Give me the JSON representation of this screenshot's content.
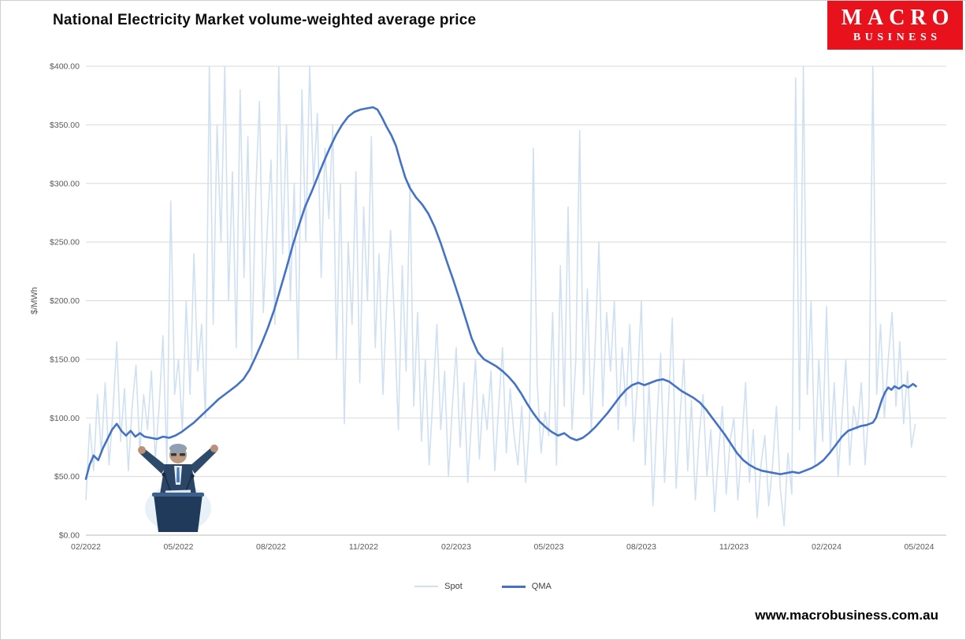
{
  "logo": {
    "line1": "MACRO",
    "line2": "BUSINESS",
    "bg": "#e8121d",
    "fg": "#ffffff"
  },
  "footer": {
    "website": "www.macrobusiness.com.au"
  },
  "overlay_image": {
    "name": "speaker-at-podium-arms-raised"
  },
  "chart_data": {
    "type": "line",
    "title": "National Electricity Market volume-weighted average price",
    "xlabel": "",
    "ylabel": "$/MWh",
    "ylim": [
      0,
      400
    ],
    "ytick_step": 50,
    "ytick_labels": [
      "$0.00",
      "$50.00",
      "$100.00",
      "$150.00",
      "$200.00",
      "$250.00",
      "$300.00",
      "$350.00",
      "$400.00"
    ],
    "x_axis": {
      "unit": "months since 02/2022",
      "tick_months": [
        0,
        3,
        6,
        9,
        12,
        15,
        18,
        21,
        24,
        27
      ],
      "tick_labels": [
        "02/2022",
        "05/2022",
        "08/2022",
        "11/2022",
        "02/2023",
        "05/2023",
        "08/2023",
        "11/2023",
        "02/2024",
        "05/2024"
      ]
    },
    "grid": "horizontal",
    "legend_position": "bottom-center",
    "series": [
      {
        "name": "Spot",
        "color": "#cfe0f2",
        "x_start": 0,
        "x_step": 0.125,
        "values": [
          30,
          95,
          55,
          120,
          70,
          130,
          60,
          105,
          165,
          80,
          125,
          55,
          110,
          145,
          70,
          120,
          90,
          140,
          65,
          110,
          170,
          60,
          285,
          120,
          150,
          90,
          200,
          120,
          240,
          140,
          180,
          100,
          400,
          180,
          350,
          250,
          400,
          200,
          310,
          160,
          380,
          220,
          340,
          150,
          290,
          370,
          190,
          260,
          320,
          180,
          400,
          240,
          350,
          200,
          300,
          150,
          380,
          250,
          400,
          300,
          360,
          220,
          330,
          270,
          350,
          150,
          300,
          95,
          250,
          180,
          310,
          130,
          280,
          200,
          340,
          160,
          240,
          120,
          200,
          260,
          180,
          90,
          230,
          140,
          300,
          110,
          190,
          80,
          150,
          60,
          120,
          180,
          90,
          140,
          50,
          110,
          160,
          75,
          130,
          45,
          100,
          150,
          65,
          120,
          90,
          140,
          55,
          110,
          160,
          70,
          125,
          85,
          60,
          110,
          45,
          95,
          330,
          130,
          70,
          105,
          85,
          190,
          60,
          230,
          110,
          280,
          90,
          150,
          345,
          120,
          210,
          90,
          160,
          250,
          110,
          190,
          140,
          200,
          90,
          160,
          110,
          180,
          80,
          130,
          200,
          60,
          130,
          25,
          95,
          155,
          45,
          110,
          185,
          40,
          100,
          150,
          55,
          115,
          30,
          85,
          120,
          50,
          90,
          20,
          70,
          110,
          35,
          80,
          100,
          30,
          75,
          130,
          45,
          90,
          15,
          60,
          85,
          25,
          60,
          110,
          40,
          8,
          70,
          35,
          390,
          90,
          400,
          120,
          200,
          60,
          150,
          80,
          195,
          70,
          130,
          50,
          100,
          150,
          60,
          110,
          90,
          130,
          60,
          110,
          400,
          120,
          180,
          100,
          150,
          190,
          110,
          165,
          95,
          140,
          75,
          95
        ]
      },
      {
        "name": "QMA",
        "color": "#4472c4",
        "points": [
          [
            0,
            48
          ],
          [
            0.12,
            60
          ],
          [
            0.25,
            68
          ],
          [
            0.4,
            64
          ],
          [
            0.55,
            74
          ],
          [
            0.7,
            82
          ],
          [
            0.85,
            90
          ],
          [
            1.0,
            95
          ],
          [
            1.15,
            89
          ],
          [
            1.3,
            85
          ],
          [
            1.45,
            89
          ],
          [
            1.6,
            84
          ],
          [
            1.75,
            87
          ],
          [
            1.9,
            84
          ],
          [
            2.1,
            83
          ],
          [
            2.3,
            82
          ],
          [
            2.5,
            84
          ],
          [
            2.7,
            83
          ],
          [
            2.9,
            85
          ],
          [
            3.1,
            88
          ],
          [
            3.3,
            92
          ],
          [
            3.5,
            96
          ],
          [
            3.7,
            101
          ],
          [
            3.9,
            106
          ],
          [
            4.1,
            111
          ],
          [
            4.3,
            116
          ],
          [
            4.5,
            120
          ],
          [
            4.7,
            124
          ],
          [
            4.9,
            128
          ],
          [
            5.1,
            133
          ],
          [
            5.3,
            141
          ],
          [
            5.5,
            152
          ],
          [
            5.7,
            164
          ],
          [
            5.9,
            177
          ],
          [
            6.1,
            192
          ],
          [
            6.3,
            210
          ],
          [
            6.5,
            228
          ],
          [
            6.7,
            247
          ],
          [
            6.9,
            264
          ],
          [
            7.1,
            280
          ],
          [
            7.3,
            292
          ],
          [
            7.5,
            305
          ],
          [
            7.7,
            318
          ],
          [
            7.9,
            330
          ],
          [
            8.1,
            341
          ],
          [
            8.3,
            350
          ],
          [
            8.5,
            357
          ],
          [
            8.7,
            361
          ],
          [
            8.9,
            363
          ],
          [
            9.1,
            364
          ],
          [
            9.3,
            365
          ],
          [
            9.45,
            363
          ],
          [
            9.6,
            356
          ],
          [
            9.75,
            348
          ],
          [
            9.9,
            341
          ],
          [
            10.05,
            332
          ],
          [
            10.2,
            318
          ],
          [
            10.35,
            305
          ],
          [
            10.5,
            296
          ],
          [
            10.7,
            288
          ],
          [
            10.9,
            282
          ],
          [
            11.1,
            274
          ],
          [
            11.3,
            263
          ],
          [
            11.5,
            249
          ],
          [
            11.7,
            233
          ],
          [
            11.9,
            218
          ],
          [
            12.1,
            202
          ],
          [
            12.3,
            185
          ],
          [
            12.5,
            168
          ],
          [
            12.7,
            156
          ],
          [
            12.9,
            150
          ],
          [
            13.1,
            147
          ],
          [
            13.3,
            144
          ],
          [
            13.5,
            140
          ],
          [
            13.7,
            135
          ],
          [
            13.9,
            129
          ],
          [
            14.1,
            121
          ],
          [
            14.3,
            112
          ],
          [
            14.5,
            104
          ],
          [
            14.7,
            97
          ],
          [
            14.9,
            92
          ],
          [
            15.1,
            88
          ],
          [
            15.3,
            85
          ],
          [
            15.5,
            87
          ],
          [
            15.7,
            83
          ],
          [
            15.9,
            81
          ],
          [
            16.1,
            83
          ],
          [
            16.3,
            87
          ],
          [
            16.5,
            92
          ],
          [
            16.7,
            98
          ],
          [
            16.9,
            104
          ],
          [
            17.1,
            111
          ],
          [
            17.3,
            118
          ],
          [
            17.5,
            124
          ],
          [
            17.7,
            128
          ],
          [
            17.9,
            130
          ],
          [
            18.1,
            128
          ],
          [
            18.3,
            130
          ],
          [
            18.5,
            132
          ],
          [
            18.7,
            133
          ],
          [
            18.9,
            131
          ],
          [
            19.1,
            127
          ],
          [
            19.3,
            123
          ],
          [
            19.5,
            120
          ],
          [
            19.7,
            117
          ],
          [
            19.9,
            113
          ],
          [
            20.1,
            107
          ],
          [
            20.3,
            100
          ],
          [
            20.5,
            93
          ],
          [
            20.7,
            86
          ],
          [
            20.9,
            78
          ],
          [
            21.1,
            70
          ],
          [
            21.3,
            64
          ],
          [
            21.5,
            60
          ],
          [
            21.7,
            57
          ],
          [
            21.9,
            55
          ],
          [
            22.1,
            54
          ],
          [
            22.3,
            53
          ],
          [
            22.5,
            52
          ],
          [
            22.7,
            53
          ],
          [
            22.9,
            54
          ],
          [
            23.1,
            53
          ],
          [
            23.3,
            55
          ],
          [
            23.5,
            57
          ],
          [
            23.7,
            60
          ],
          [
            23.9,
            64
          ],
          [
            24.1,
            70
          ],
          [
            24.3,
            77
          ],
          [
            24.5,
            84
          ],
          [
            24.7,
            89
          ],
          [
            24.9,
            91
          ],
          [
            25.1,
            93
          ],
          [
            25.3,
            94
          ],
          [
            25.5,
            96
          ],
          [
            25.6,
            100
          ],
          [
            25.7,
            108
          ],
          [
            25.8,
            116
          ],
          [
            25.9,
            122
          ],
          [
            26.0,
            126
          ],
          [
            26.1,
            124
          ],
          [
            26.2,
            127
          ],
          [
            26.35,
            125
          ],
          [
            26.5,
            128
          ],
          [
            26.65,
            126
          ],
          [
            26.8,
            129
          ],
          [
            26.9,
            127
          ]
        ]
      }
    ]
  }
}
